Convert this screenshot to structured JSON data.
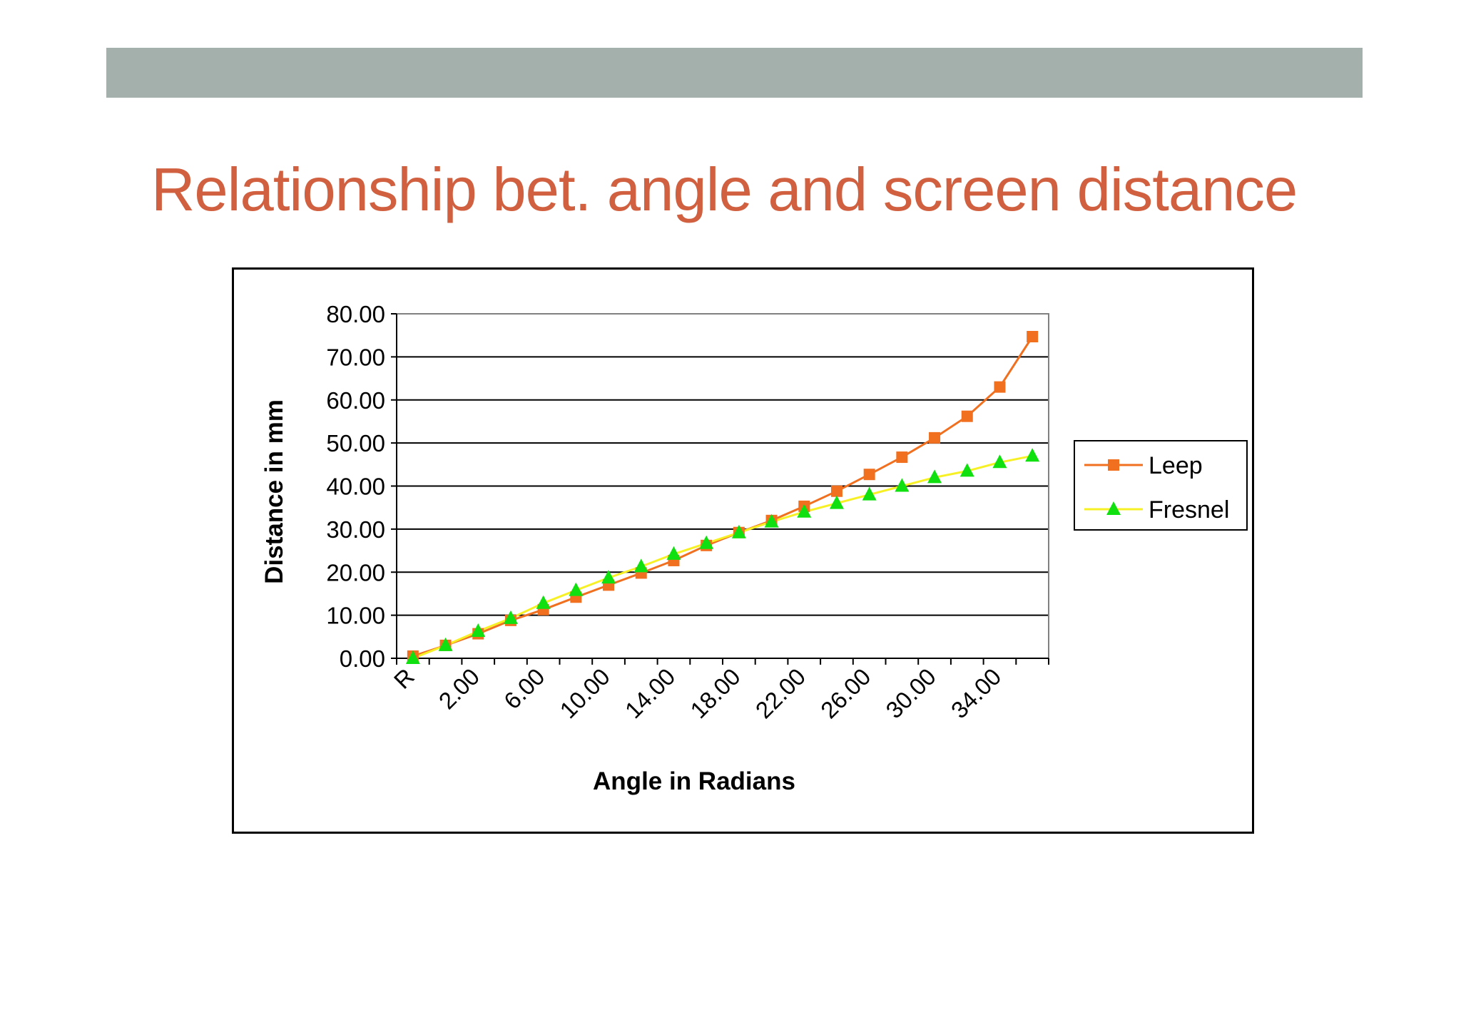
{
  "slide": {
    "title": "Relationship bet. angle and screen distance"
  },
  "chart_data": {
    "type": "line",
    "xlabel": "Angle in Radians",
    "ylabel": "Distance in mm",
    "ylim": [
      0,
      80
    ],
    "ytick_labels": [
      "0.00",
      "10.00",
      "20.00",
      "30.00",
      "40.00",
      "50.00",
      "60.00",
      "70.00",
      "80.00"
    ],
    "categories": [
      "R",
      "",
      "2.00",
      "",
      "6.00",
      "",
      "10.00",
      "",
      "14.00",
      "",
      "18.00",
      "",
      "22.00",
      "",
      "26.00",
      "",
      "30.00",
      "",
      "34.00",
      ""
    ],
    "grid": true,
    "legend_position": "right",
    "series": [
      {
        "name": "Leep",
        "color": "#f07020",
        "marker": "square",
        "values": [
          0.5,
          3.0,
          5.7,
          8.8,
          11.3,
          14.2,
          17.0,
          19.8,
          22.7,
          26.2,
          29.2,
          32.0,
          35.3,
          38.8,
          42.7,
          46.7,
          51.2,
          56.2,
          63.0,
          74.7
        ]
      },
      {
        "name": "Fresnel",
        "color": "#f6f025",
        "marker_color": "#10e010",
        "marker": "triangle",
        "values": [
          0.0,
          3.0,
          6.3,
          9.3,
          12.8,
          15.8,
          18.7,
          21.3,
          24.2,
          26.7,
          29.2,
          31.7,
          34.0,
          36.0,
          38.0,
          40.0,
          42.0,
          43.5,
          45.5,
          47.0
        ]
      }
    ]
  }
}
